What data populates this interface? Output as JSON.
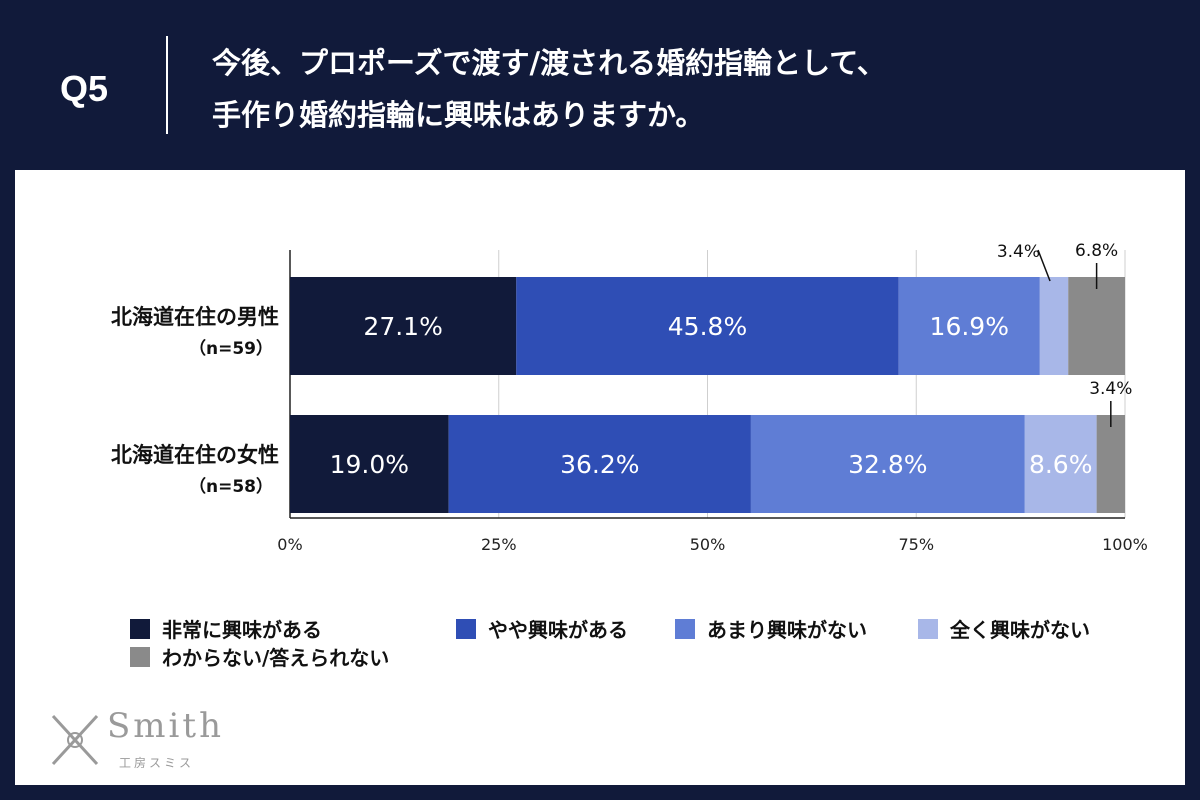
{
  "header": {
    "q_label": "Q5",
    "question_line1": "今後、プロポーズで渡す/渡される婚約指輪として、",
    "question_line2": "手作り婚約指輪に興味はありますか。"
  },
  "chart_data": {
    "type": "bar",
    "orientation": "horizontal",
    "stacked": true,
    "categories": [
      {
        "label": "北海道在住の男性",
        "n": "（n=59）"
      },
      {
        "label": "北海道在住の女性",
        "n": "（n=58）"
      }
    ],
    "series": [
      {
        "name": "非常に興味がある",
        "values": [
          27.1,
          19.0
        ],
        "labels": [
          "27.1%",
          "19.0%"
        ],
        "color": "#111a3a"
      },
      {
        "name": "やや興味がある",
        "values": [
          45.8,
          36.2
        ],
        "labels": [
          "45.8%",
          "36.2%"
        ],
        "color": "#2f4eb5"
      },
      {
        "name": "あまり興味がない",
        "values": [
          16.9,
          32.8
        ],
        "labels": [
          "16.9%",
          "32.8%"
        ],
        "color": "#5f7dd5"
      },
      {
        "name": "全く興味がない",
        "values": [
          3.4,
          8.6
        ],
        "labels": [
          "3.4%",
          "8.6%"
        ],
        "color": "#a8b7e8"
      },
      {
        "name": "わからない/答えられない",
        "values": [
          6.8,
          3.4
        ],
        "labels": [
          "6.8%",
          "3.4%"
        ],
        "color": "#8a8a8a"
      }
    ],
    "xlim": [
      0,
      100
    ],
    "x_ticks": [
      "0%",
      "25%",
      "50%",
      "75%",
      "100%"
    ],
    "grid": true,
    "legend_position": "bottom"
  },
  "logo": {
    "word": "Smith",
    "sub": "工房スミス"
  }
}
